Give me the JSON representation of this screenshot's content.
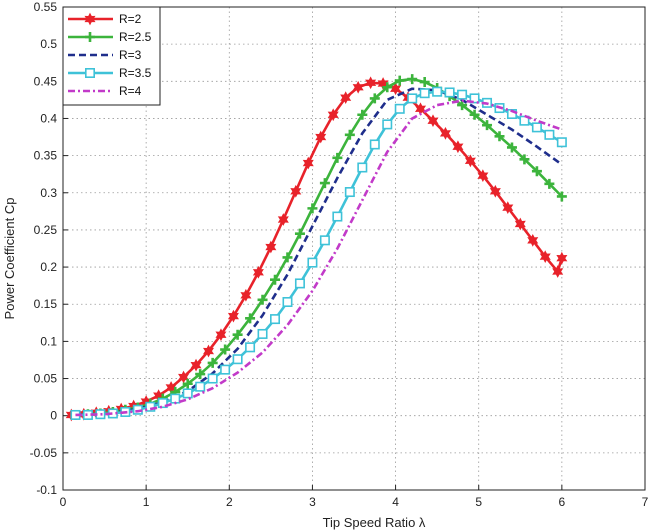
{
  "chart_data": {
    "type": "line",
    "title": "",
    "xlabel": "Tip Speed Ratio   λ",
    "ylabel": "Power Coefficient   Cp",
    "xlim": [
      0,
      7
    ],
    "ylim": [
      -0.1,
      0.55
    ],
    "xticks": [
      "0",
      "1",
      "2",
      "3",
      "4",
      "5",
      "6",
      "7"
    ],
    "yticks": [
      "-0.1",
      "-0.05",
      "0",
      "0.05",
      "0.1",
      "0.15",
      "0.2",
      "0.25",
      "0.3",
      "0.35",
      "0.4",
      "0.45",
      "0.5",
      "0.55"
    ],
    "grid": true,
    "legend_position": "top-left",
    "series": [
      {
        "name": "R=2",
        "color": "#e8222a",
        "dash": "solid",
        "marker": "star",
        "points": [
          [
            0.1,
            0.001
          ],
          [
            0.25,
            0.002
          ],
          [
            0.4,
            0.004
          ],
          [
            0.55,
            0.006
          ],
          [
            0.7,
            0.009
          ],
          [
            0.85,
            0.013
          ],
          [
            1.0,
            0.019
          ],
          [
            1.15,
            0.027
          ],
          [
            1.3,
            0.038
          ],
          [
            1.45,
            0.052
          ],
          [
            1.6,
            0.068
          ],
          [
            1.75,
            0.087
          ],
          [
            1.9,
            0.109
          ],
          [
            2.05,
            0.134
          ],
          [
            2.2,
            0.162
          ],
          [
            2.35,
            0.193
          ],
          [
            2.5,
            0.227
          ],
          [
            2.65,
            0.264
          ],
          [
            2.8,
            0.302
          ],
          [
            2.95,
            0.34
          ],
          [
            3.1,
            0.375
          ],
          [
            3.25,
            0.405
          ],
          [
            3.4,
            0.428
          ],
          [
            3.55,
            0.442
          ],
          [
            3.7,
            0.448
          ],
          [
            3.85,
            0.447
          ],
          [
            4.0,
            0.44
          ],
          [
            4.15,
            0.428
          ],
          [
            4.3,
            0.413
          ],
          [
            4.45,
            0.397
          ],
          [
            4.6,
            0.38
          ],
          [
            4.75,
            0.362
          ],
          [
            4.9,
            0.343
          ],
          [
            5.05,
            0.323
          ],
          [
            5.2,
            0.302
          ],
          [
            5.35,
            0.28
          ],
          [
            5.5,
            0.258
          ],
          [
            5.65,
            0.236
          ],
          [
            5.8,
            0.214
          ],
          [
            5.95,
            0.194
          ],
          [
            6.0,
            0.212
          ]
        ]
      },
      {
        "name": "R=2.5",
        "color": "#3cb43c",
        "dash": "solid",
        "marker": "plus",
        "points": [
          [
            0.15,
            0.001
          ],
          [
            0.3,
            0.002
          ],
          [
            0.45,
            0.003
          ],
          [
            0.6,
            0.005
          ],
          [
            0.75,
            0.008
          ],
          [
            0.9,
            0.011
          ],
          [
            1.05,
            0.016
          ],
          [
            1.2,
            0.023
          ],
          [
            1.35,
            0.032
          ],
          [
            1.5,
            0.043
          ],
          [
            1.65,
            0.056
          ],
          [
            1.8,
            0.071
          ],
          [
            1.95,
            0.089
          ],
          [
            2.1,
            0.109
          ],
          [
            2.25,
            0.131
          ],
          [
            2.4,
            0.156
          ],
          [
            2.55,
            0.183
          ],
          [
            2.7,
            0.213
          ],
          [
            2.85,
            0.245
          ],
          [
            3.0,
            0.279
          ],
          [
            3.15,
            0.313
          ],
          [
            3.3,
            0.347
          ],
          [
            3.45,
            0.378
          ],
          [
            3.6,
            0.405
          ],
          [
            3.75,
            0.427
          ],
          [
            3.9,
            0.442
          ],
          [
            4.05,
            0.451
          ],
          [
            4.2,
            0.453
          ],
          [
            4.35,
            0.449
          ],
          [
            4.5,
            0.441
          ],
          [
            4.65,
            0.43
          ],
          [
            4.8,
            0.418
          ],
          [
            4.95,
            0.405
          ],
          [
            5.1,
            0.391
          ],
          [
            5.25,
            0.376
          ],
          [
            5.4,
            0.361
          ],
          [
            5.55,
            0.345
          ],
          [
            5.7,
            0.329
          ],
          [
            5.85,
            0.312
          ],
          [
            6.0,
            0.295
          ]
        ]
      },
      {
        "name": "R=3",
        "color": "#1f2e8c",
        "dash": "dashed",
        "marker": "none",
        "points": [
          [
            0.15,
            0.001
          ],
          [
            0.5,
            0.003
          ],
          [
            0.9,
            0.009
          ],
          [
            1.2,
            0.018
          ],
          [
            1.5,
            0.033
          ],
          [
            1.8,
            0.057
          ],
          [
            2.1,
            0.09
          ],
          [
            2.4,
            0.135
          ],
          [
            2.7,
            0.19
          ],
          [
            3.0,
            0.255
          ],
          [
            3.3,
            0.32
          ],
          [
            3.6,
            0.38
          ],
          [
            3.9,
            0.425
          ],
          [
            4.2,
            0.44
          ],
          [
            4.5,
            0.438
          ],
          [
            4.8,
            0.425
          ],
          [
            5.1,
            0.405
          ],
          [
            5.4,
            0.385
          ],
          [
            5.7,
            0.362
          ],
          [
            6.0,
            0.338
          ]
        ]
      },
      {
        "name": "R=3.5",
        "color": "#3ec2d8",
        "dash": "solid",
        "marker": "square",
        "points": [
          [
            0.15,
            0.001
          ],
          [
            0.3,
            0.001
          ],
          [
            0.45,
            0.002
          ],
          [
            0.6,
            0.003
          ],
          [
            0.75,
            0.005
          ],
          [
            0.9,
            0.008
          ],
          [
            1.05,
            0.012
          ],
          [
            1.2,
            0.017
          ],
          [
            1.35,
            0.023
          ],
          [
            1.5,
            0.03
          ],
          [
            1.65,
            0.039
          ],
          [
            1.8,
            0.05
          ],
          [
            1.95,
            0.062
          ],
          [
            2.1,
            0.076
          ],
          [
            2.25,
            0.092
          ],
          [
            2.4,
            0.11
          ],
          [
            2.55,
            0.13
          ],
          [
            2.7,
            0.153
          ],
          [
            2.85,
            0.178
          ],
          [
            3.0,
            0.206
          ],
          [
            3.15,
            0.236
          ],
          [
            3.3,
            0.268
          ],
          [
            3.45,
            0.301
          ],
          [
            3.6,
            0.334
          ],
          [
            3.75,
            0.365
          ],
          [
            3.9,
            0.392
          ],
          [
            4.05,
            0.413
          ],
          [
            4.2,
            0.427
          ],
          [
            4.35,
            0.434
          ],
          [
            4.5,
            0.436
          ],
          [
            4.65,
            0.435
          ],
          [
            4.8,
            0.432
          ],
          [
            4.95,
            0.427
          ],
          [
            5.1,
            0.421
          ],
          [
            5.25,
            0.414
          ],
          [
            5.4,
            0.406
          ],
          [
            5.55,
            0.397
          ],
          [
            5.7,
            0.388
          ],
          [
            5.85,
            0.378
          ],
          [
            6.0,
            0.368
          ]
        ]
      },
      {
        "name": "R=4",
        "color": "#c23ac9",
        "dash": "dashdot",
        "marker": "none",
        "points": [
          [
            0.15,
            0.001
          ],
          [
            0.5,
            0.002
          ],
          [
            0.9,
            0.006
          ],
          [
            1.2,
            0.012
          ],
          [
            1.5,
            0.022
          ],
          [
            1.8,
            0.037
          ],
          [
            2.1,
            0.058
          ],
          [
            2.4,
            0.085
          ],
          [
            2.7,
            0.122
          ],
          [
            3.0,
            0.168
          ],
          [
            3.3,
            0.225
          ],
          [
            3.6,
            0.29
          ],
          [
            3.9,
            0.355
          ],
          [
            4.2,
            0.4
          ],
          [
            4.5,
            0.418
          ],
          [
            4.8,
            0.424
          ],
          [
            5.1,
            0.42
          ],
          [
            5.4,
            0.41
          ],
          [
            5.7,
            0.397
          ],
          [
            6.0,
            0.385
          ]
        ]
      }
    ]
  }
}
